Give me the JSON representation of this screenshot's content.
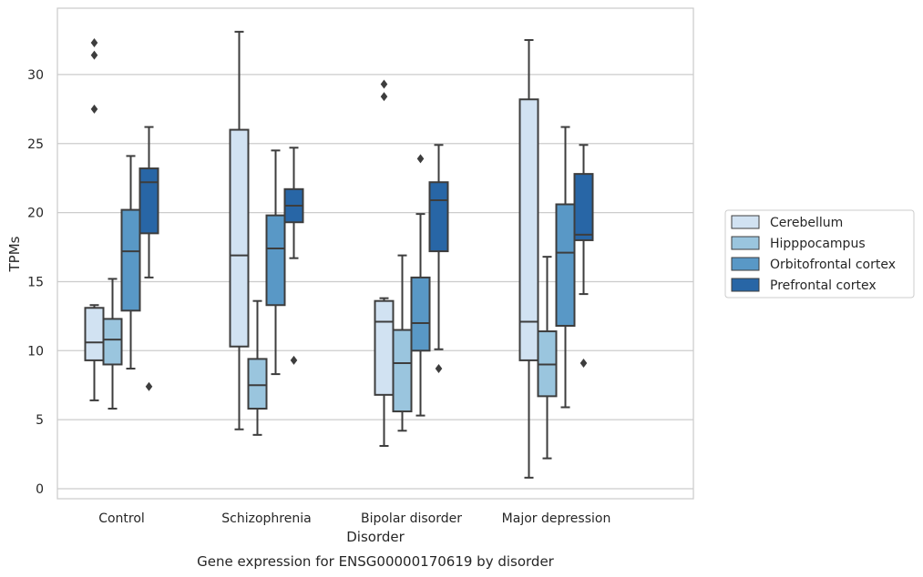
{
  "chart_data": {
    "type": "box",
    "title": "Gene expression for ENSG00000170619 by disorder",
    "xlabel": "Disorder",
    "ylabel": "TPMs",
    "ylim": [
      -0.8,
      34.2
    ],
    "yticks": [
      0,
      5,
      10,
      15,
      20,
      25,
      30
    ],
    "grid": "horizontal",
    "legend_position": "right",
    "categories": [
      "Control",
      "Schizophrenia",
      "Bipolar disorder",
      "Major depression"
    ],
    "series": [
      {
        "name": "Cerebellum",
        "color": "#d1e2f2",
        "boxes": [
          {
            "whisker_low": 6.4,
            "q1": 9.3,
            "median": 10.6,
            "q3": 13.1,
            "whisker_high": 13.3,
            "outliers": [
              27.5,
              31.4,
              32.3
            ]
          },
          {
            "whisker_low": 4.3,
            "q1": 10.3,
            "median": 16.9,
            "q3": 26.0,
            "whisker_high": 33.1,
            "outliers": []
          },
          {
            "whisker_low": 3.1,
            "q1": 6.8,
            "median": 12.1,
            "q3": 13.6,
            "whisker_high": 13.8,
            "outliers": [
              28.4,
              29.3
            ]
          },
          {
            "whisker_low": 0.8,
            "q1": 9.3,
            "median": 12.1,
            "q3": 28.2,
            "whisker_high": 32.5,
            "outliers": []
          }
        ]
      },
      {
        "name": "Hipppocampus",
        "color": "#9ac5de",
        "boxes": [
          {
            "whisker_low": 5.8,
            "q1": 9.0,
            "median": 10.8,
            "q3": 12.3,
            "whisker_high": 15.2,
            "outliers": []
          },
          {
            "whisker_low": 3.9,
            "q1": 5.8,
            "median": 7.5,
            "q3": 9.4,
            "whisker_high": 13.6,
            "outliers": []
          },
          {
            "whisker_low": 4.2,
            "q1": 5.6,
            "median": 9.1,
            "q3": 11.5,
            "whisker_high": 16.9,
            "outliers": []
          },
          {
            "whisker_low": 2.2,
            "q1": 6.7,
            "median": 9.0,
            "q3": 11.4,
            "whisker_high": 16.8,
            "outliers": []
          }
        ]
      },
      {
        "name": "Orbitofrontal cortex",
        "color": "#5998c6",
        "boxes": [
          {
            "whisker_low": 8.7,
            "q1": 12.9,
            "median": 17.2,
            "q3": 20.2,
            "whisker_high": 24.1,
            "outliers": []
          },
          {
            "whisker_low": 8.3,
            "q1": 13.3,
            "median": 17.4,
            "q3": 19.8,
            "whisker_high": 24.5,
            "outliers": []
          },
          {
            "whisker_low": 5.3,
            "q1": 10.0,
            "median": 12.0,
            "q3": 15.3,
            "whisker_high": 19.9,
            "outliers": [
              23.9
            ]
          },
          {
            "whisker_low": 5.9,
            "q1": 11.8,
            "median": 17.1,
            "q3": 20.6,
            "whisker_high": 26.2,
            "outliers": []
          }
        ]
      },
      {
        "name": "Prefrontal cortex",
        "color": "#2866a6",
        "boxes": [
          {
            "whisker_low": 15.3,
            "q1": 18.5,
            "median": 22.2,
            "q3": 23.2,
            "whisker_high": 26.2,
            "outliers": [
              7.4
            ]
          },
          {
            "whisker_low": 16.7,
            "q1": 19.3,
            "median": 20.5,
            "q3": 21.7,
            "whisker_high": 24.7,
            "outliers": [
              9.3
            ]
          },
          {
            "whisker_low": 10.1,
            "q1": 17.2,
            "median": 20.9,
            "q3": 22.2,
            "whisker_high": 24.9,
            "outliers": [
              8.7
            ]
          },
          {
            "whisker_low": 14.1,
            "q1": 18.0,
            "median": 18.4,
            "q3": 22.8,
            "whisker_high": 24.9,
            "outliers": [
              9.1
            ]
          }
        ]
      }
    ]
  }
}
